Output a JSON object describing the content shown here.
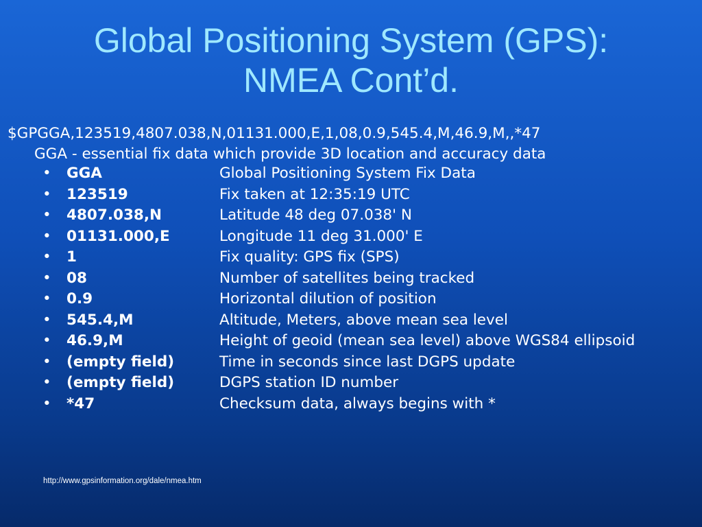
{
  "slide": {
    "title_line1": "Global Positioning System (GPS):",
    "title_line2": "NMEA Cont’d.",
    "sentence": "$GPGGA,123519,4807.038,N,01131.000,E,1,08,0.9,545.4,M,46.9,M,,*47",
    "description": "GGA - essential fix data which provide 3D location and accuracy data",
    "fields": [
      {
        "code": "GGA",
        "desc": "Global Positioning System Fix Data"
      },
      {
        "code": "123519",
        "desc": "Fix taken at 12:35:19 UTC"
      },
      {
        "code": "4807.038,N",
        "desc": "Latitude 48 deg 07.038' N"
      },
      {
        "code": "01131.000,E",
        "desc": "Longitude 11 deg 31.000' E"
      },
      {
        "code": "1",
        "desc": "Fix quality: GPS fix (SPS)"
      },
      {
        "code": "08",
        "desc": "Number of satellites being tracked"
      },
      {
        "code": "0.9",
        "desc": "Horizontal dilution of position"
      },
      {
        "code": "545.4,M",
        "desc": "Altitude, Meters, above mean sea level"
      },
      {
        "code": "46.9,M",
        "desc": "Height of geoid (mean sea level) above WGS84 ellipsoid"
      },
      {
        "code": "(empty field)",
        "desc": "Time in seconds since last DGPS update"
      },
      {
        "code": "(empty field)",
        "desc": "DGPS station ID number"
      },
      {
        "code": "*47",
        "desc": "Checksum data, always begins with *"
      }
    ],
    "bullet_glyph": "•",
    "source_url": "http://www.gpsinformation.org/dale/nmea.htm"
  },
  "colors": {
    "title": "#9fe8ff",
    "text": "#ffffff",
    "background_top": "#1a66d6",
    "background_bottom": "#062a6a"
  }
}
